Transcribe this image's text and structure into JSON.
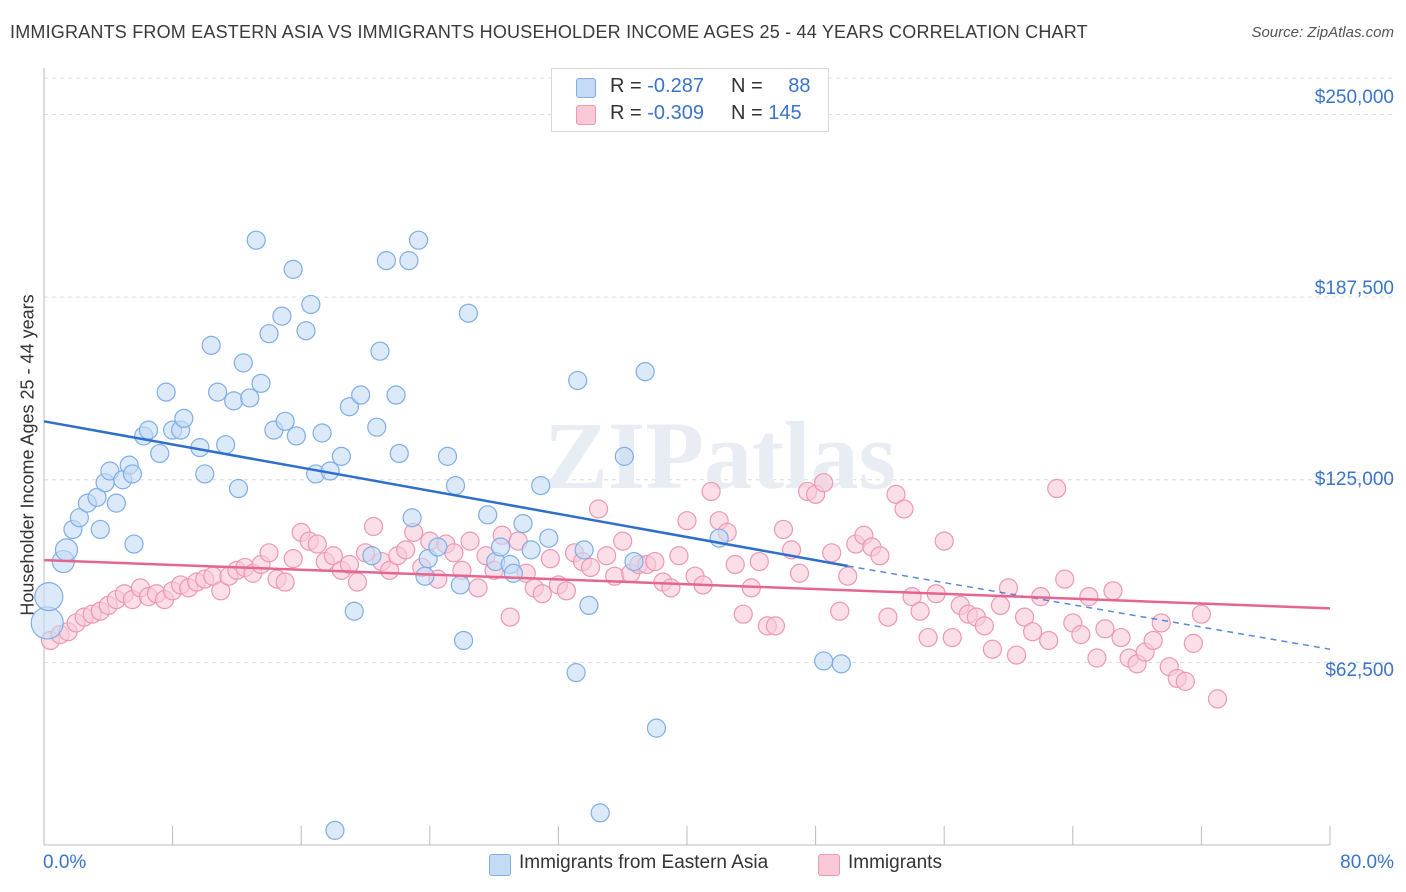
{
  "title": "IMMIGRANTS FROM EASTERN ASIA VS IMMIGRANTS HOUSEHOLDER INCOME AGES 25 - 44 YEARS CORRELATION CHART",
  "source": "Source: ZipAtlas.com",
  "watermark": "ZIPatlas",
  "legend": {
    "r_label": "R =",
    "n_label": "N =",
    "rows": [
      {
        "r": "-0.287",
        "n": "88",
        "swatch_fill": "#c5dbf5",
        "swatch_stroke": "#7eaee6"
      },
      {
        "r": "-0.309",
        "n": "145",
        "swatch_fill": "#f9c9d8",
        "swatch_stroke": "#ee97b3"
      }
    ]
  },
  "bottom_legend": [
    {
      "label": "Immigrants from Eastern Asia",
      "color": "#c5dbf5",
      "stroke": "#7eaee6"
    },
    {
      "label": "Immigrants",
      "color": "#f9c9d8",
      "stroke": "#ee97b3"
    }
  ],
  "chart_data": {
    "type": "scatter",
    "xlabel": "",
    "ylabel": "Householder Income Ages 25 - 44 years",
    "xlim": [
      0,
      80
    ],
    "ylim": [
      0,
      262500
    ],
    "x_tick_labels": [
      "0.0%",
      "80.0%"
    ],
    "y_ticks": [
      62500,
      125000,
      187500,
      250000
    ],
    "y_tick_labels": [
      "$62,500",
      "$125,000",
      "$187,500",
      "$250,000"
    ],
    "grid": true,
    "legend_position": "top-center",
    "series": [
      {
        "name": "Immigrants from Eastern Asia",
        "color": "#7eaee6",
        "fill": "#c5dbf5",
        "trend": {
          "x": [
            0,
            50
          ],
          "y": [
            145000,
            95500
          ],
          "dashed_to": [
            80,
            67000
          ],
          "color": "#2f6fcc"
        },
        "points": [
          [
            0.2,
            76000
          ],
          [
            0.3,
            85000
          ],
          [
            1.2,
            97000
          ],
          [
            1.4,
            101000
          ],
          [
            1.8,
            108000
          ],
          [
            2.2,
            112000
          ],
          [
            2.7,
            117000
          ],
          [
            3.3,
            119000
          ],
          [
            3.5,
            108000
          ],
          [
            3.8,
            124000
          ],
          [
            4.1,
            128000
          ],
          [
            4.5,
            117000
          ],
          [
            4.9,
            125000
          ],
          [
            5.3,
            130000
          ],
          [
            5.5,
            127000
          ],
          [
            5.6,
            103000
          ],
          [
            6.2,
            140000
          ],
          [
            6.5,
            142000
          ],
          [
            7.2,
            134000
          ],
          [
            7.6,
            155000
          ],
          [
            8.0,
            142000
          ],
          [
            8.5,
            142000
          ],
          [
            8.7,
            146000
          ],
          [
            9.7,
            136000
          ],
          [
            10.0,
            127000
          ],
          [
            10.4,
            171000
          ],
          [
            10.8,
            155000
          ],
          [
            11.3,
            137000
          ],
          [
            11.8,
            152000
          ],
          [
            12.1,
            122000
          ],
          [
            12.4,
            165000
          ],
          [
            12.8,
            153000
          ],
          [
            13.2,
            207000
          ],
          [
            13.5,
            158000
          ],
          [
            14.0,
            175000
          ],
          [
            14.3,
            142000
          ],
          [
            14.8,
            181000
          ],
          [
            15.0,
            145000
          ],
          [
            15.5,
            197000
          ],
          [
            15.7,
            140000
          ],
          [
            16.3,
            176000
          ],
          [
            16.6,
            185000
          ],
          [
            16.9,
            127000
          ],
          [
            17.3,
            141000
          ],
          [
            17.8,
            128000
          ],
          [
            18.5,
            133000
          ],
          [
            19.0,
            150000
          ],
          [
            19.3,
            80000
          ],
          [
            19.7,
            154000
          ],
          [
            20.4,
            99000
          ],
          [
            20.7,
            143000
          ],
          [
            20.9,
            169000
          ],
          [
            21.3,
            200000
          ],
          [
            21.9,
            154000
          ],
          [
            22.1,
            134000
          ],
          [
            22.7,
            200000
          ],
          [
            22.9,
            112000
          ],
          [
            23.3,
            207000
          ],
          [
            23.7,
            92000
          ],
          [
            23.9,
            98000
          ],
          [
            24.5,
            102000
          ],
          [
            25.1,
            133000
          ],
          [
            25.6,
            123000
          ],
          [
            25.9,
            89000
          ],
          [
            26.1,
            70000
          ],
          [
            26.4,
            182000
          ],
          [
            27.6,
            113000
          ],
          [
            28.1,
            97000
          ],
          [
            28.4,
            102000
          ],
          [
            29.0,
            96000
          ],
          [
            29.2,
            93000
          ],
          [
            29.8,
            110000
          ],
          [
            30.3,
            101000
          ],
          [
            30.9,
            123000
          ],
          [
            31.4,
            105000
          ],
          [
            33.1,
            59000
          ],
          [
            33.2,
            159000
          ],
          [
            33.6,
            101000
          ],
          [
            33.9,
            82000
          ],
          [
            34.6,
            11000
          ],
          [
            36.1,
            133000
          ],
          [
            36.7,
            97000
          ],
          [
            37.4,
            162000
          ],
          [
            38.1,
            40000
          ],
          [
            42.0,
            105000
          ],
          [
            48.5,
            63000
          ],
          [
            49.6,
            62000
          ],
          [
            18.1,
            5000
          ]
        ]
      },
      {
        "name": "Immigrants",
        "color": "#ee97b3",
        "fill": "#f9c9d8",
        "trend": {
          "x": [
            0,
            80
          ],
          "y": [
            97500,
            81000
          ],
          "color": "#e4668f"
        },
        "points": [
          [
            0.4,
            70000
          ],
          [
            1.0,
            72000
          ],
          [
            1.5,
            73000
          ],
          [
            2.0,
            76000
          ],
          [
            2.5,
            78000
          ],
          [
            3.0,
            79000
          ],
          [
            3.5,
            80000
          ],
          [
            4.0,
            82000
          ],
          [
            4.5,
            84000
          ],
          [
            5.0,
            86000
          ],
          [
            5.5,
            84000
          ],
          [
            6.0,
            88000
          ],
          [
            6.5,
            85000
          ],
          [
            7.0,
            86000
          ],
          [
            7.5,
            84000
          ],
          [
            8.0,
            87000
          ],
          [
            8.5,
            89000
          ],
          [
            9.0,
            88000
          ],
          [
            9.5,
            90000
          ],
          [
            10.0,
            91000
          ],
          [
            10.5,
            92000
          ],
          [
            11.0,
            87000
          ],
          [
            11.5,
            92000
          ],
          [
            12.0,
            94000
          ],
          [
            12.5,
            95000
          ],
          [
            13.0,
            93000
          ],
          [
            13.5,
            96000
          ],
          [
            14.0,
            100000
          ],
          [
            14.5,
            91000
          ],
          [
            15.0,
            90000
          ],
          [
            15.5,
            98000
          ],
          [
            16.0,
            107000
          ],
          [
            16.5,
            104000
          ],
          [
            17.0,
            103000
          ],
          [
            17.5,
            97000
          ],
          [
            18.0,
            99000
          ],
          [
            18.5,
            94000
          ],
          [
            19.0,
            96000
          ],
          [
            19.5,
            90000
          ],
          [
            20.0,
            100000
          ],
          [
            20.5,
            109000
          ],
          [
            21.0,
            97000
          ],
          [
            21.5,
            94000
          ],
          [
            22.0,
            99000
          ],
          [
            22.5,
            101000
          ],
          [
            23.0,
            107000
          ],
          [
            23.5,
            95000
          ],
          [
            24.0,
            104000
          ],
          [
            24.5,
            91000
          ],
          [
            25.0,
            103000
          ],
          [
            25.5,
            100000
          ],
          [
            26.0,
            94000
          ],
          [
            26.5,
            104000
          ],
          [
            27.0,
            88000
          ],
          [
            27.5,
            99000
          ],
          [
            28.0,
            94000
          ],
          [
            28.5,
            106000
          ],
          [
            29.0,
            78000
          ],
          [
            29.5,
            104000
          ],
          [
            30.0,
            93000
          ],
          [
            30.5,
            88000
          ],
          [
            31.0,
            86000
          ],
          [
            31.5,
            98000
          ],
          [
            32.0,
            89000
          ],
          [
            32.5,
            87000
          ],
          [
            33.0,
            100000
          ],
          [
            33.5,
            97000
          ],
          [
            34.0,
            95000
          ],
          [
            34.5,
            115000
          ],
          [
            35.0,
            99000
          ],
          [
            35.5,
            92000
          ],
          [
            36.0,
            104000
          ],
          [
            36.5,
            93000
          ],
          [
            37.0,
            96000
          ],
          [
            37.5,
            96000
          ],
          [
            38.0,
            97000
          ],
          [
            38.5,
            90000
          ],
          [
            39.0,
            88000
          ],
          [
            39.5,
            99000
          ],
          [
            40.0,
            111000
          ],
          [
            40.5,
            92000
          ],
          [
            41.0,
            89000
          ],
          [
            41.5,
            121000
          ],
          [
            42.0,
            111000
          ],
          [
            42.5,
            107000
          ],
          [
            43.0,
            96000
          ],
          [
            43.5,
            79000
          ],
          [
            44.0,
            88000
          ],
          [
            44.5,
            97000
          ],
          [
            45.0,
            75000
          ],
          [
            45.5,
            75000
          ],
          [
            46.0,
            108000
          ],
          [
            46.5,
            101000
          ],
          [
            47.0,
            93000
          ],
          [
            47.5,
            121000
          ],
          [
            48.0,
            120000
          ],
          [
            48.5,
            124000
          ],
          [
            49.0,
            100000
          ],
          [
            49.5,
            80000
          ],
          [
            50.0,
            92000
          ],
          [
            50.5,
            103000
          ],
          [
            51.0,
            106000
          ],
          [
            51.5,
            102000
          ],
          [
            52.0,
            99000
          ],
          [
            52.5,
            78000
          ],
          [
            53.0,
            120000
          ],
          [
            53.5,
            115000
          ],
          [
            54.0,
            85000
          ],
          [
            54.5,
            80000
          ],
          [
            55.0,
            71000
          ],
          [
            55.5,
            86000
          ],
          [
            56.0,
            104000
          ],
          [
            56.5,
            71000
          ],
          [
            57.0,
            82000
          ],
          [
            57.5,
            79000
          ],
          [
            58.0,
            78000
          ],
          [
            58.5,
            75000
          ],
          [
            59.0,
            67000
          ],
          [
            59.5,
            82000
          ],
          [
            60.0,
            88000
          ],
          [
            60.5,
            65000
          ],
          [
            61.0,
            78000
          ],
          [
            61.5,
            73000
          ],
          [
            62.0,
            85000
          ],
          [
            62.5,
            70000
          ],
          [
            63.0,
            122000
          ],
          [
            63.5,
            91000
          ],
          [
            64.0,
            76000
          ],
          [
            64.5,
            72000
          ],
          [
            65.0,
            85000
          ],
          [
            65.5,
            64000
          ],
          [
            66.0,
            74000
          ],
          [
            66.5,
            87000
          ],
          [
            67.0,
            71000
          ],
          [
            67.5,
            64000
          ],
          [
            68.0,
            62000
          ],
          [
            68.5,
            66000
          ],
          [
            69.0,
            70000
          ],
          [
            69.5,
            76000
          ],
          [
            70.0,
            61000
          ],
          [
            70.5,
            57000
          ],
          [
            71.0,
            56000
          ],
          [
            71.5,
            69000
          ],
          [
            72.0,
            79000
          ],
          [
            73.0,
            50000
          ]
        ]
      }
    ]
  }
}
